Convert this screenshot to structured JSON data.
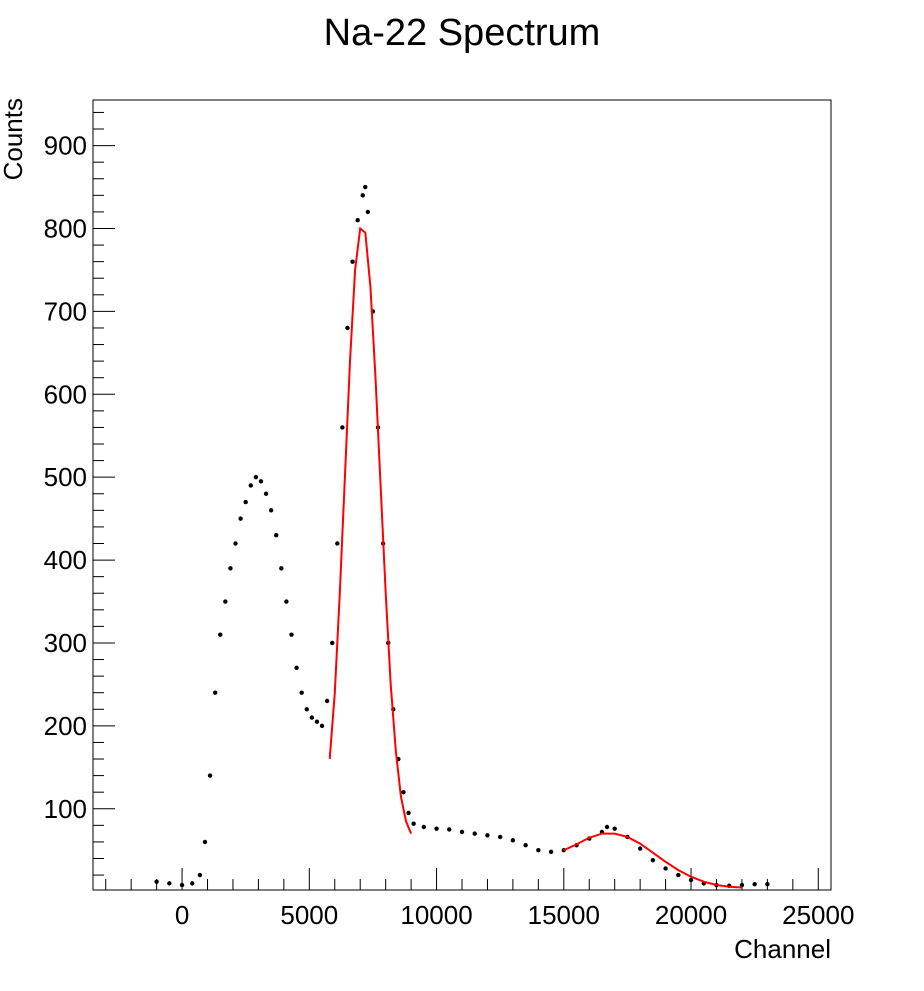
{
  "chart_data": {
    "type": "scatter",
    "title": "Na-22 Spectrum",
    "xlabel": "Channel",
    "ylabel": "Counts",
    "xlim": [
      -3500,
      25500
    ],
    "ylim": [
      2,
      955
    ],
    "x_ticks": [
      0,
      5000,
      10000,
      15000,
      20000,
      25000
    ],
    "x_tick_labels": [
      "0",
      "5000",
      "10000",
      "15000",
      "20000",
      "25000"
    ],
    "y_ticks": [
      100,
      200,
      300,
      400,
      500,
      600,
      700,
      800,
      900
    ],
    "y_tick_labels": [
      "100",
      "200",
      "300",
      "400",
      "500",
      "600",
      "700",
      "800",
      "900"
    ],
    "grid": false,
    "legend": "none",
    "data_color": "#000000",
    "fit_color": "#ff0000",
    "series": [
      {
        "kind": "markers",
        "x": [
          -1000,
          -500,
          0,
          400,
          700,
          900,
          1100,
          1300,
          1500,
          1700,
          1900,
          2100,
          2300,
          2500,
          2700,
          2900,
          3100,
          3300,
          3500,
          3700,
          3900,
          4100,
          4300,
          4500,
          4700,
          4900,
          5100,
          5300,
          5500,
          5700,
          5900,
          6100,
          6300,
          6500,
          6700,
          6900,
          7100,
          7200,
          7300,
          7500,
          7700,
          7900,
          8100,
          8300,
          8500,
          8700,
          8900,
          9100,
          9500,
          10000,
          10500,
          11000,
          11500,
          12000,
          12500,
          13000,
          13500,
          14000,
          14500,
          15000,
          15500,
          16000,
          16500,
          16700,
          17000,
          17500,
          18000,
          18500,
          19000,
          19500,
          20000,
          20500,
          21000,
          21500,
          22000,
          22500,
          23000
        ],
        "y": [
          12,
          10,
          8,
          10,
          20,
          60,
          140,
          240,
          310,
          350,
          390,
          420,
          450,
          470,
          490,
          500,
          495,
          480,
          460,
          430,
          390,
          350,
          310,
          270,
          240,
          220,
          210,
          205,
          200,
          230,
          300,
          420,
          560,
          680,
          760,
          810,
          840,
          850,
          820,
          700,
          560,
          420,
          300,
          220,
          160,
          120,
          95,
          82,
          78,
          76,
          75,
          72,
          70,
          68,
          66,
          62,
          56,
          50,
          48,
          50,
          56,
          64,
          72,
          78,
          76,
          66,
          52,
          38,
          28,
          20,
          14,
          10,
          8,
          7,
          8,
          9,
          9
        ]
      },
      {
        "kind": "fit",
        "x": [
          5800,
          6000,
          6200,
          6400,
          6600,
          6800,
          7000,
          7200,
          7400,
          7600,
          7800,
          8000,
          8200,
          8400,
          8600,
          8800,
          9000
        ],
        "y": [
          160,
          240,
          360,
          500,
          640,
          750,
          800,
          795,
          730,
          620,
          490,
          360,
          250,
          170,
          115,
          85,
          70
        ]
      },
      {
        "kind": "fit",
        "x": [
          15000,
          15500,
          16000,
          16500,
          17000,
          17500,
          18000,
          18500,
          19000,
          19500,
          20000,
          20500,
          21000,
          21500,
          22000
        ],
        "y": [
          50,
          57,
          65,
          70,
          70,
          66,
          58,
          47,
          36,
          26,
          18,
          12,
          8,
          6,
          5
        ]
      }
    ]
  }
}
